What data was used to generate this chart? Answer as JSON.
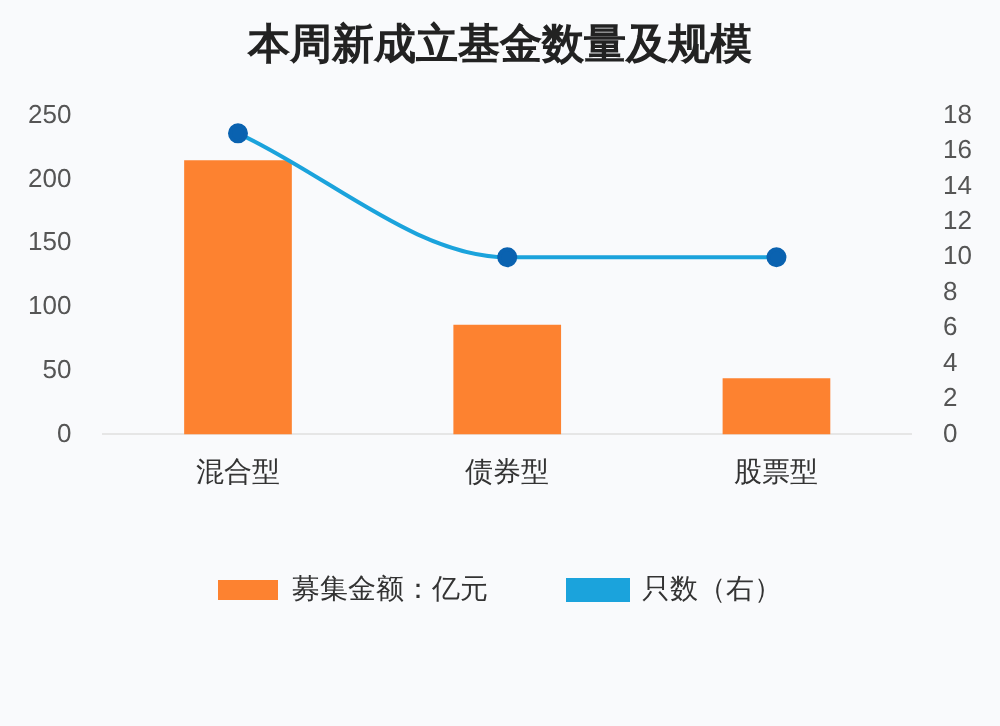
{
  "chart_data": {
    "type": "bar",
    "title": "本周新成立基金数量及规模",
    "categories": [
      "混合型",
      "债券型",
      "股票型"
    ],
    "series": [
      {
        "name": "募集金额：亿元",
        "color": "#fd8230",
        "values": [
          215,
          86,
          44
        ]
      },
      {
        "name": "只数（右）",
        "type": "line",
        "axis": "y2",
        "color": "#1ba3dc",
        "values": [
          17,
          10,
          10
        ]
      }
    ],
    "ylim": [
      0,
      250
    ],
    "yticks": [
      0,
      50,
      100,
      150,
      200,
      250
    ],
    "y2lim": [
      0,
      18
    ],
    "y2ticks": [
      0,
      2,
      4,
      6,
      8,
      10,
      12,
      14,
      16,
      18
    ],
    "grid": false,
    "legend": "bottom",
    "marker": "circle"
  }
}
